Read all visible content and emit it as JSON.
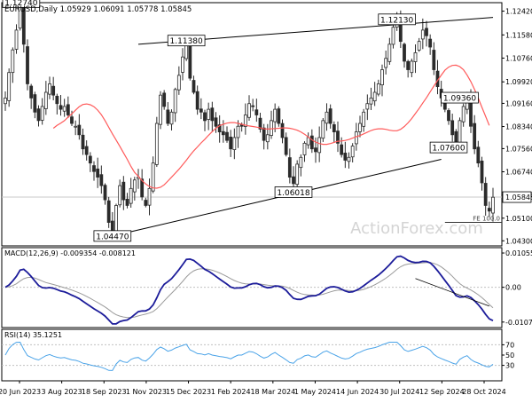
{
  "chart_data": {
    "type": "candlestick",
    "header": {
      "symbol_label": "EURUSD,Daily",
      "ohlc_label": "1.05929 1.06091 1.05778 1.05845"
    },
    "x": {
      "date_labels": [
        "20 Jun 2023",
        "3 Aug 2023",
        "18 Sep 2023",
        "1 Nov 2023",
        "15 Dec 2023",
        "1 Feb 2024",
        "18 Mar 2024",
        "1 May 2024",
        "14 Jun 2024",
        "30 Jul 2024",
        "12 Sep 2024",
        "28 Oct 2024"
      ]
    },
    "price_panel": {
      "ylim": [
        1.0412,
        1.1272
      ],
      "y_ticks": [
        1.1242,
        1.1158,
        1.1076,
        1.0992,
        1.0916,
        1.0834,
        1.0756,
        1.0674,
        1.0592,
        1.051,
        1.043
      ],
      "y_tick_labels": [
        "1.12420",
        "1.11580",
        "1.10760",
        "1.09920",
        "1.09160",
        "1.08340",
        "1.07560",
        "1.06740",
        "1.05920",
        "1.05100",
        "1.04300"
      ],
      "current_price": 1.05845,
      "current_price_label": "1.05845",
      "close_values": [
        1.0935,
        1.1025,
        1.1105,
        1.1175,
        1.1274,
        1.1125,
        1.0985,
        1.0935,
        1.0885,
        1.0855,
        1.0905,
        1.0955,
        1.0985,
        1.0945,
        1.0915,
        1.0895,
        1.0905,
        1.0875,
        1.0845,
        1.0835,
        1.0805,
        1.0755,
        1.0735,
        1.0705,
        1.0675,
        1.0655,
        1.0625,
        1.0575,
        1.0495,
        1.0447,
        1.0555,
        1.0625,
        1.0575,
        1.0555,
        1.0615,
        1.0645,
        1.0655,
        1.0585,
        1.0555,
        1.0615,
        1.0705,
        1.0845,
        1.0945,
        1.0905,
        1.0845,
        1.0885,
        1.0965,
        1.1015,
        1.108,
        1.1138,
        1.1005,
        1.0955,
        1.0895,
        1.0885,
        1.0855,
        1.0895,
        1.0855,
        1.0835,
        1.0815,
        1.0805,
        1.0785,
        1.0755,
        1.0795,
        1.0835,
        1.0835,
        1.0875,
        1.0915,
        1.0905,
        1.0875,
        1.0825,
        1.0785,
        1.0805,
        1.0855,
        1.0895,
        1.0845,
        1.0795,
        1.0735,
        1.0655,
        1.0632,
        1.0701,
        1.0725,
        1.0775,
        1.0795,
        1.0755,
        1.0745,
        1.0795,
        1.0855,
        1.0885,
        1.0845,
        1.0815,
        1.0775,
        1.0735,
        1.0715,
        1.0725,
        1.0765,
        1.0815,
        1.0845,
        1.0885,
        1.0915,
        1.0935,
        1.0955,
        1.0985,
        1.1035,
        1.1075,
        1.1125,
        1.1185,
        1.1213,
        1.1135,
        1.1065,
        1.1035,
        1.1065,
        1.1095,
        1.1135,
        1.1175,
        1.1155,
        1.1115,
        1.1035,
        1.0975,
        1.0935,
        1.0895,
        1.0855,
        1.0805,
        1.0765,
        1.0855,
        1.0905,
        1.0936,
        1.0835,
        1.0755,
        1.0705,
        1.0635,
        1.0555,
        1.0535,
        1.0584
      ],
      "ma_values": [
        1.0828,
        1.0838,
        1.0846,
        1.0855,
        1.0867,
        1.0879,
        1.0892,
        1.0904,
        1.0912,
        1.0914,
        1.0911,
        1.0904,
        1.0892,
        1.0876,
        1.0855,
        1.0831,
        1.0808,
        1.0786,
        1.0764,
        1.0741,
        1.0718,
        1.0693,
        1.0672,
        1.0658,
        1.0643,
        1.0631,
        1.0622,
        1.0617,
        1.0616,
        1.0619,
        1.0628,
        1.0641,
        1.0655,
        1.0669,
        1.0683,
        1.0699,
        1.0715,
        1.0732,
        1.0748,
        1.0762,
        1.0776,
        1.0789,
        1.0803,
        1.0816,
        1.0828,
        1.0837,
        1.0842,
        1.0846,
        1.0848,
        1.0848,
        1.0845,
        1.0842,
        1.0839,
        1.0836,
        1.0834,
        1.0832,
        1.0829,
        1.0826,
        1.0825,
        1.0826,
        1.0827,
        1.0828,
        1.0829,
        1.0829,
        1.0828,
        1.0825,
        1.0821,
        1.0815,
        1.0807,
        1.0797,
        1.0787,
        1.0779,
        1.0774,
        1.0771,
        1.0771,
        1.0774,
        1.0778,
        1.0782,
        1.0783,
        1.0785,
        1.0788,
        1.0793,
        1.0798,
        1.0802,
        1.0808,
        1.0814,
        1.082,
        1.0824,
        1.0826,
        1.0826,
        1.0824,
        1.0821,
        1.0819,
        1.0819,
        1.0824,
        1.0834,
        1.0847,
        1.0862,
        1.088,
        1.0898,
        1.0917,
        1.0936,
        1.0957,
        1.0977,
        1.0997,
        1.1016,
        1.1033,
        1.1044,
        1.105,
        1.1051,
        1.1046,
        1.1035,
        1.1016,
        1.0993,
        1.0965,
        1.0935,
        1.0902,
        1.087,
        1.0838
      ],
      "ma_start_index": 13,
      "labels": [
        {
          "text": "1.12740",
          "price": 1.1274,
          "index": 4
        },
        {
          "text": "1.11380",
          "price": 1.1138,
          "index": 49
        },
        {
          "text": "1.04470",
          "price": 1.0447,
          "index": 29
        },
        {
          "text": "1.06018",
          "price": 1.0602,
          "index": 78
        },
        {
          "text": "1.12130",
          "price": 1.1213,
          "index": 106
        },
        {
          "text": "1.09360",
          "price": 1.0936,
          "index": 123
        },
        {
          "text": "1.07600",
          "price": 1.076,
          "index": 120
        }
      ],
      "trendlines": [
        {
          "from": [
            1.0447,
            29
          ],
          "to": [
            1.0718,
            118
          ]
        },
        {
          "from": [
            1.1125,
            36
          ],
          "to": [
            1.122,
            132
          ]
        }
      ],
      "projection": {
        "label": "FE 100.0",
        "price": 1.0495,
        "from_index": 119
      }
    },
    "macd_panel": {
      "label": "MACD(12,26,9) -0.009354 -0.008121",
      "ylim": [
        -0.0124,
        0.0122
      ],
      "y_ticks": [
        0.010551,
        0.0,
        -0.01071
      ],
      "y_tick_labels": [
        "0.010551",
        "0.00",
        "-0.01071"
      ]
    },
    "rsi_panel": {
      "label": "RSI(14) 35.1251",
      "ylim": [
        0,
        100
      ],
      "y_ticks": [
        70,
        50,
        30
      ],
      "y_tick_labels": [
        "70",
        "50",
        "30"
      ]
    },
    "colors": {
      "candle": "#2b2b2b",
      "ma": "#ff5a5a",
      "macd": "#1c1c9a",
      "macd_signal": "#9a9a9a",
      "rsi": "#4aa3e8",
      "level_line": "#c8c8c8"
    },
    "watermark": "ActionForex.com"
  }
}
